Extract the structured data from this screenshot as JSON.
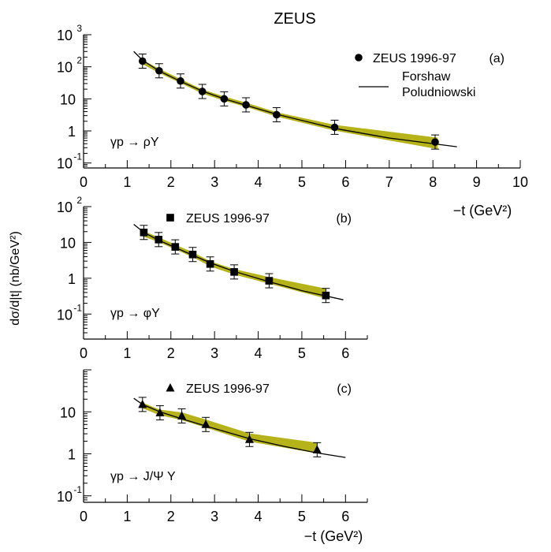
{
  "figure": {
    "title": "ZEUS",
    "shared_ylabel": "dσ/d|t| (nb/GeV²)",
    "colors": {
      "band": "#b5b21a",
      "curve": "#000000",
      "marker": "#000000"
    }
  },
  "chart_data": [
    {
      "type": "scatter",
      "panel_label": "(a)",
      "reaction": "γp → ρY",
      "xlabel": "−t (GeV²)",
      "xlim": [
        0,
        10
      ],
      "ylim": [
        0.07,
        1000
      ],
      "y_scale": "log",
      "x_ticks": [
        "0",
        "1",
        "2",
        "3",
        "4",
        "5",
        "6",
        "7",
        "8",
        "9",
        "10"
      ],
      "y_ticks": [
        {
          "value": 1000,
          "base": "10",
          "exp": "3"
        },
        {
          "value": 100,
          "base": "10",
          "exp": "2"
        },
        {
          "value": 10,
          "base": "10",
          "exp": ""
        },
        {
          "value": 1,
          "base": "1",
          "exp": ""
        },
        {
          "value": 0.1,
          "base": "10",
          "exp": "-1"
        }
      ],
      "legend": {
        "position": "top-right",
        "data_label": "ZEUS 1996-97",
        "curve_label_line1": "Forshaw",
        "curve_label_line2": "Poludniowski",
        "marker": "circle"
      },
      "series": [
        {
          "name": "ZEUS 1996-97",
          "marker": "circle",
          "points": [
            {
              "x": 1.35,
              "y": 150
            },
            {
              "x": 1.73,
              "y": 75
            },
            {
              "x": 2.22,
              "y": 36
            },
            {
              "x": 2.72,
              "y": 17
            },
            {
              "x": 3.22,
              "y": 10
            },
            {
              "x": 3.72,
              "y": 6.5
            },
            {
              "x": 4.42,
              "y": 3.2
            },
            {
              "x": 5.75,
              "y": 1.3
            },
            {
              "x": 8.05,
              "y": 0.45
            }
          ]
        }
      ],
      "band": [
        {
          "x": 1.3,
          "lo": 135,
          "hi": 175
        },
        {
          "x": 1.73,
          "lo": 66,
          "hi": 84
        },
        {
          "x": 2.22,
          "lo": 32,
          "hi": 40
        },
        {
          "x": 2.72,
          "lo": 15,
          "hi": 19
        },
        {
          "x": 3.22,
          "lo": 9,
          "hi": 11.5
        },
        {
          "x": 3.72,
          "lo": 5.8,
          "hi": 7.4
        },
        {
          "x": 4.42,
          "lo": 2.9,
          "hi": 3.7
        },
        {
          "x": 5.75,
          "lo": 1.05,
          "hi": 1.5
        },
        {
          "x": 8.1,
          "lo": 0.28,
          "hi": 0.6
        }
      ],
      "curve": [
        {
          "x": 1.15,
          "y": 300
        },
        {
          "x": 1.35,
          "y": 160
        },
        {
          "x": 1.73,
          "y": 74
        },
        {
          "x": 2.22,
          "y": 35
        },
        {
          "x": 2.72,
          "y": 17.5
        },
        {
          "x": 3.22,
          "y": 10
        },
        {
          "x": 3.72,
          "y": 6.3
        },
        {
          "x": 4.42,
          "y": 3.3
        },
        {
          "x": 5.75,
          "y": 1.2
        },
        {
          "x": 7.0,
          "y": 0.6
        },
        {
          "x": 8.55,
          "y": 0.32
        }
      ]
    },
    {
      "type": "scatter",
      "panel_label": "(b)",
      "reaction": "γp → φY",
      "xlabel": "",
      "xlim": [
        0,
        6.5
      ],
      "ylim": [
        0.02,
        100
      ],
      "y_scale": "log",
      "x_ticks": [
        "0",
        "1",
        "2",
        "3",
        "4",
        "5",
        "6"
      ],
      "y_ticks": [
        {
          "value": 100,
          "base": "10",
          "exp": "2"
        },
        {
          "value": 10,
          "base": "10",
          "exp": ""
        },
        {
          "value": 1,
          "base": "1",
          "exp": ""
        },
        {
          "value": 0.1,
          "base": "10",
          "exp": "-1"
        }
      ],
      "legend": {
        "position": "top-left",
        "data_label": "ZEUS 1996-97",
        "marker": "square"
      },
      "series": [
        {
          "name": "ZEUS 1996-97",
          "marker": "square",
          "points": [
            {
              "x": 1.38,
              "y": 19
            },
            {
              "x": 1.72,
              "y": 12
            },
            {
              "x": 2.1,
              "y": 7.5
            },
            {
              "x": 2.5,
              "y": 4.6
            },
            {
              "x": 2.9,
              "y": 2.5
            },
            {
              "x": 3.45,
              "y": 1.5
            },
            {
              "x": 4.25,
              "y": 0.85
            },
            {
              "x": 5.55,
              "y": 0.33
            }
          ]
        }
      ],
      "band": [
        {
          "x": 1.3,
          "lo": 16,
          "hi": 22
        },
        {
          "x": 1.72,
          "lo": 10.5,
          "hi": 13.5
        },
        {
          "x": 2.1,
          "lo": 6.6,
          "hi": 8.4
        },
        {
          "x": 2.5,
          "lo": 4.0,
          "hi": 5.2
        },
        {
          "x": 2.9,
          "lo": 2.2,
          "hi": 2.9
        },
        {
          "x": 3.45,
          "lo": 1.3,
          "hi": 1.75
        },
        {
          "x": 4.25,
          "lo": 0.72,
          "hi": 1.05
        },
        {
          "x": 5.55,
          "lo": 0.28,
          "hi": 0.5
        }
      ],
      "curve": [
        {
          "x": 1.15,
          "y": 32
        },
        {
          "x": 1.38,
          "y": 19
        },
        {
          "x": 1.72,
          "y": 11.5
        },
        {
          "x": 2.1,
          "y": 7.2
        },
        {
          "x": 2.5,
          "y": 4.4
        },
        {
          "x": 2.9,
          "y": 2.7
        },
        {
          "x": 3.45,
          "y": 1.55
        },
        {
          "x": 4.25,
          "y": 0.8
        },
        {
          "x": 5.0,
          "y": 0.45
        },
        {
          "x": 5.95,
          "y": 0.25
        }
      ]
    },
    {
      "type": "scatter",
      "panel_label": "(c)",
      "reaction": "γp → J/Ψ Y",
      "xlabel": "−t (GeV²)",
      "xlim": [
        0,
        6.5
      ],
      "ylim": [
        0.07,
        100
      ],
      "y_scale": "log",
      "x_ticks": [
        "0",
        "1",
        "2",
        "3",
        "4",
        "5",
        "6"
      ],
      "y_ticks": [
        {
          "value": 10,
          "base": "10",
          "exp": ""
        },
        {
          "value": 1,
          "base": "1",
          "exp": ""
        },
        {
          "value": 0.1,
          "base": "10",
          "exp": "-1"
        }
      ],
      "legend": {
        "position": "top-left",
        "data_label": "ZEUS 1996-97",
        "marker": "triangle"
      },
      "series": [
        {
          "name": "ZEUS 1996-97",
          "marker": "triangle",
          "points": [
            {
              "x": 1.35,
              "y": 15
            },
            {
              "x": 1.75,
              "y": 9.5
            },
            {
              "x": 2.25,
              "y": 8
            },
            {
              "x": 2.8,
              "y": 5
            },
            {
              "x": 3.8,
              "y": 2.2
            },
            {
              "x": 5.35,
              "y": 1.25
            }
          ]
        }
      ],
      "band": [
        {
          "x": 1.3,
          "lo": 13,
          "hi": 17
        },
        {
          "x": 1.75,
          "lo": 8.5,
          "hi": 11
        },
        {
          "x": 2.25,
          "lo": 6.5,
          "hi": 9.5
        },
        {
          "x": 2.8,
          "lo": 4.3,
          "hi": 6.4
        },
        {
          "x": 3.8,
          "lo": 2.0,
          "hi": 3.0
        },
        {
          "x": 5.35,
          "lo": 1.05,
          "hi": 1.8
        }
      ],
      "curve": [
        {
          "x": 1.15,
          "y": 21
        },
        {
          "x": 1.35,
          "y": 15
        },
        {
          "x": 1.75,
          "y": 10
        },
        {
          "x": 2.25,
          "y": 6.8
        },
        {
          "x": 2.8,
          "y": 4.6
        },
        {
          "x": 3.8,
          "y": 2.3
        },
        {
          "x": 4.6,
          "y": 1.5
        },
        {
          "x": 5.35,
          "y": 1.05
        },
        {
          "x": 6.0,
          "y": 0.82
        }
      ]
    }
  ]
}
